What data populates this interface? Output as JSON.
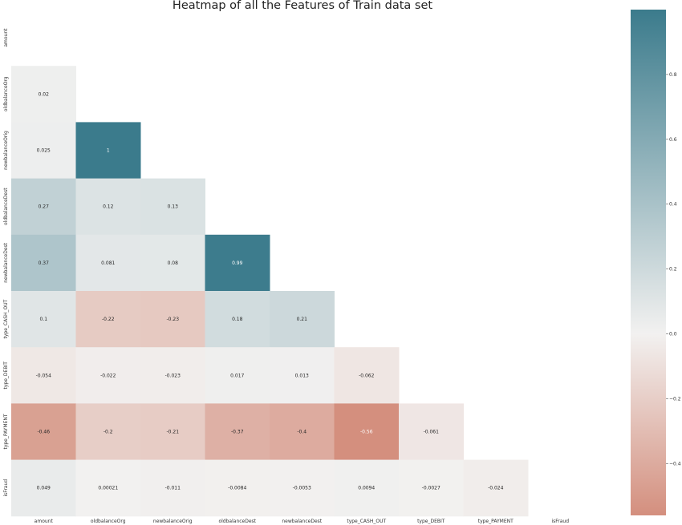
{
  "chart_data": {
    "type": "heatmap",
    "title": "Heatmap of all the Features of Train data set",
    "rows": [
      "amount",
      "oldbalanceOrg",
      "newbalanceOrig",
      "oldbalanceDest",
      "newbalanceDest",
      "type_CASH_OUT",
      "type_DEBIT",
      "type_PAYMENT",
      "isFraud"
    ],
    "columns": [
      "amount",
      "oldbalanceOrg",
      "newbalanceOrig",
      "oldbalanceDest",
      "newbalanceDest",
      "type_CASH_OUT",
      "type_DEBIT",
      "type_PAYMENT",
      "isFraud"
    ],
    "mask": "upper triangle including diagonal",
    "values": [
      [],
      [
        0.02
      ],
      [
        0.025,
        1
      ],
      [
        0.27,
        0.12,
        0.13
      ],
      [
        0.37,
        0.081,
        0.08,
        0.99
      ],
      [
        0.1,
        -0.22,
        -0.23,
        0.18,
        0.21
      ],
      [
        -0.054,
        -0.022,
        -0.023,
        0.017,
        0.013,
        -0.062
      ],
      [
        -0.46,
        -0.2,
        -0.21,
        -0.37,
        -0.4,
        -0.56,
        -0.061
      ],
      [
        0.049,
        0.00021,
        -0.011,
        -0.0084,
        -0.0053,
        0.0094,
        -0.0027,
        -0.024
      ]
    ],
    "cell_labels": [
      [],
      [
        "0.02"
      ],
      [
        "0.025",
        "1"
      ],
      [
        "0.27",
        "0.12",
        "0.13"
      ],
      [
        "0.37",
        "0.081",
        "0.08",
        "0.99"
      ],
      [
        "0.1",
        "-0.22",
        "-0.23",
        "0.18",
        "0.21"
      ],
      [
        "-0.054",
        "-0.022",
        "-0.023",
        "0.017",
        "0.013",
        "-0.062"
      ],
      [
        "-0.46",
        "-0.2",
        "-0.21",
        "-0.37",
        "-0.4",
        "-0.56",
        "-0.061"
      ],
      [
        "0.049",
        "0.00021",
        "-0.011",
        "-0.0084",
        "-0.0053",
        "0.0094",
        "-0.0027",
        "-0.024"
      ]
    ],
    "colorbar": {
      "min": -0.56,
      "max": 1.0,
      "ticks": [
        0.8,
        0.6,
        0.4,
        0.2,
        0.0,
        -0.2,
        -0.4
      ],
      "tick_labels": [
        "0.8",
        "0.6",
        "0.4",
        "0.2",
        "0.0",
        "−0.2",
        "−0.4"
      ],
      "palette": "diverging",
      "negative_color": "#d48f7e",
      "center_color": "#f2f1f0",
      "positive_color": "#3b7b8c"
    },
    "grid": false
  }
}
